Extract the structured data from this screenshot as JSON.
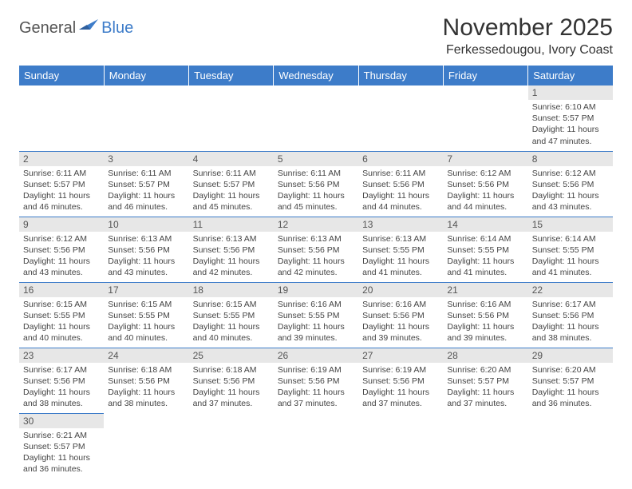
{
  "logo": {
    "text1": "General",
    "text2": "Blue"
  },
  "title": "November 2025",
  "location": "Ferkessedougou, Ivory Coast",
  "colors": {
    "header_bg": "#3d7cc9",
    "header_text": "#ffffff",
    "daynum_bg": "#e7e7e7",
    "rule": "#3d7cc9"
  },
  "weekdays": [
    "Sunday",
    "Monday",
    "Tuesday",
    "Wednesday",
    "Thursday",
    "Friday",
    "Saturday"
  ],
  "weeks": [
    [
      null,
      null,
      null,
      null,
      null,
      null,
      {
        "n": "1",
        "sr": "Sunrise: 6:10 AM",
        "ss": "Sunset: 5:57 PM",
        "d1": "Daylight: 11 hours",
        "d2": "and 47 minutes."
      }
    ],
    [
      {
        "n": "2",
        "sr": "Sunrise: 6:11 AM",
        "ss": "Sunset: 5:57 PM",
        "d1": "Daylight: 11 hours",
        "d2": "and 46 minutes."
      },
      {
        "n": "3",
        "sr": "Sunrise: 6:11 AM",
        "ss": "Sunset: 5:57 PM",
        "d1": "Daylight: 11 hours",
        "d2": "and 46 minutes."
      },
      {
        "n": "4",
        "sr": "Sunrise: 6:11 AM",
        "ss": "Sunset: 5:57 PM",
        "d1": "Daylight: 11 hours",
        "d2": "and 45 minutes."
      },
      {
        "n": "5",
        "sr": "Sunrise: 6:11 AM",
        "ss": "Sunset: 5:56 PM",
        "d1": "Daylight: 11 hours",
        "d2": "and 45 minutes."
      },
      {
        "n": "6",
        "sr": "Sunrise: 6:11 AM",
        "ss": "Sunset: 5:56 PM",
        "d1": "Daylight: 11 hours",
        "d2": "and 44 minutes."
      },
      {
        "n": "7",
        "sr": "Sunrise: 6:12 AM",
        "ss": "Sunset: 5:56 PM",
        "d1": "Daylight: 11 hours",
        "d2": "and 44 minutes."
      },
      {
        "n": "8",
        "sr": "Sunrise: 6:12 AM",
        "ss": "Sunset: 5:56 PM",
        "d1": "Daylight: 11 hours",
        "d2": "and 43 minutes."
      }
    ],
    [
      {
        "n": "9",
        "sr": "Sunrise: 6:12 AM",
        "ss": "Sunset: 5:56 PM",
        "d1": "Daylight: 11 hours",
        "d2": "and 43 minutes."
      },
      {
        "n": "10",
        "sr": "Sunrise: 6:13 AM",
        "ss": "Sunset: 5:56 PM",
        "d1": "Daylight: 11 hours",
        "d2": "and 43 minutes."
      },
      {
        "n": "11",
        "sr": "Sunrise: 6:13 AM",
        "ss": "Sunset: 5:56 PM",
        "d1": "Daylight: 11 hours",
        "d2": "and 42 minutes."
      },
      {
        "n": "12",
        "sr": "Sunrise: 6:13 AM",
        "ss": "Sunset: 5:56 PM",
        "d1": "Daylight: 11 hours",
        "d2": "and 42 minutes."
      },
      {
        "n": "13",
        "sr": "Sunrise: 6:13 AM",
        "ss": "Sunset: 5:55 PM",
        "d1": "Daylight: 11 hours",
        "d2": "and 41 minutes."
      },
      {
        "n": "14",
        "sr": "Sunrise: 6:14 AM",
        "ss": "Sunset: 5:55 PM",
        "d1": "Daylight: 11 hours",
        "d2": "and 41 minutes."
      },
      {
        "n": "15",
        "sr": "Sunrise: 6:14 AM",
        "ss": "Sunset: 5:55 PM",
        "d1": "Daylight: 11 hours",
        "d2": "and 41 minutes."
      }
    ],
    [
      {
        "n": "16",
        "sr": "Sunrise: 6:15 AM",
        "ss": "Sunset: 5:55 PM",
        "d1": "Daylight: 11 hours",
        "d2": "and 40 minutes."
      },
      {
        "n": "17",
        "sr": "Sunrise: 6:15 AM",
        "ss": "Sunset: 5:55 PM",
        "d1": "Daylight: 11 hours",
        "d2": "and 40 minutes."
      },
      {
        "n": "18",
        "sr": "Sunrise: 6:15 AM",
        "ss": "Sunset: 5:55 PM",
        "d1": "Daylight: 11 hours",
        "d2": "and 40 minutes."
      },
      {
        "n": "19",
        "sr": "Sunrise: 6:16 AM",
        "ss": "Sunset: 5:55 PM",
        "d1": "Daylight: 11 hours",
        "d2": "and 39 minutes."
      },
      {
        "n": "20",
        "sr": "Sunrise: 6:16 AM",
        "ss": "Sunset: 5:56 PM",
        "d1": "Daylight: 11 hours",
        "d2": "and 39 minutes."
      },
      {
        "n": "21",
        "sr": "Sunrise: 6:16 AM",
        "ss": "Sunset: 5:56 PM",
        "d1": "Daylight: 11 hours",
        "d2": "and 39 minutes."
      },
      {
        "n": "22",
        "sr": "Sunrise: 6:17 AM",
        "ss": "Sunset: 5:56 PM",
        "d1": "Daylight: 11 hours",
        "d2": "and 38 minutes."
      }
    ],
    [
      {
        "n": "23",
        "sr": "Sunrise: 6:17 AM",
        "ss": "Sunset: 5:56 PM",
        "d1": "Daylight: 11 hours",
        "d2": "and 38 minutes."
      },
      {
        "n": "24",
        "sr": "Sunrise: 6:18 AM",
        "ss": "Sunset: 5:56 PM",
        "d1": "Daylight: 11 hours",
        "d2": "and 38 minutes."
      },
      {
        "n": "25",
        "sr": "Sunrise: 6:18 AM",
        "ss": "Sunset: 5:56 PM",
        "d1": "Daylight: 11 hours",
        "d2": "and 37 minutes."
      },
      {
        "n": "26",
        "sr": "Sunrise: 6:19 AM",
        "ss": "Sunset: 5:56 PM",
        "d1": "Daylight: 11 hours",
        "d2": "and 37 minutes."
      },
      {
        "n": "27",
        "sr": "Sunrise: 6:19 AM",
        "ss": "Sunset: 5:56 PM",
        "d1": "Daylight: 11 hours",
        "d2": "and 37 minutes."
      },
      {
        "n": "28",
        "sr": "Sunrise: 6:20 AM",
        "ss": "Sunset: 5:57 PM",
        "d1": "Daylight: 11 hours",
        "d2": "and 37 minutes."
      },
      {
        "n": "29",
        "sr": "Sunrise: 6:20 AM",
        "ss": "Sunset: 5:57 PM",
        "d1": "Daylight: 11 hours",
        "d2": "and 36 minutes."
      }
    ],
    [
      {
        "n": "30",
        "sr": "Sunrise: 6:21 AM",
        "ss": "Sunset: 5:57 PM",
        "d1": "Daylight: 11 hours",
        "d2": "and 36 minutes."
      },
      null,
      null,
      null,
      null,
      null,
      null
    ]
  ]
}
